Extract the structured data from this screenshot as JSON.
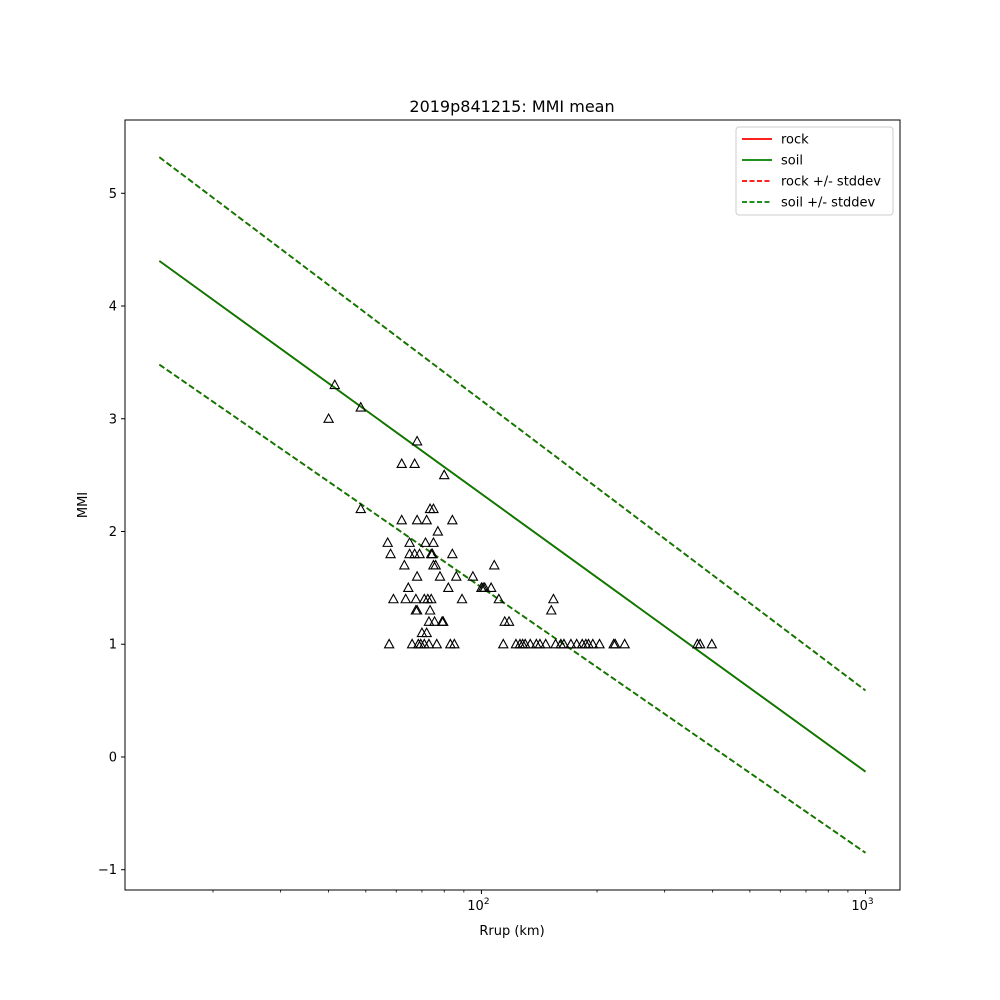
{
  "chart_data": {
    "type": "line",
    "title": "2019p841215: MMI mean",
    "xlabel": "Rrup (km)",
    "ylabel": "MMI",
    "x_scale": "log",
    "xlim": [
      11.8,
      1230
    ],
    "ylim": [
      -1.18,
      5.65
    ],
    "grid": false,
    "legend_position": "top-right",
    "x_major_ticks": [
      {
        "value": 100,
        "base": "10",
        "exp": "2"
      },
      {
        "value": 1000,
        "base": "10",
        "exp": "3"
      }
    ],
    "x_minor_ticks": [
      20,
      30,
      40,
      50,
      60,
      70,
      80,
      90,
      200,
      300,
      400,
      500,
      600,
      700,
      800,
      900
    ],
    "y_ticks": [
      {
        "value": -1,
        "label": "−1"
      },
      {
        "value": 0,
        "label": "0"
      },
      {
        "value": 1,
        "label": "1"
      },
      {
        "value": 2,
        "label": "2"
      },
      {
        "value": 3,
        "label": "3"
      },
      {
        "value": 4,
        "label": "4"
      },
      {
        "value": 5,
        "label": "5"
      }
    ],
    "lines": [
      {
        "name": "rock",
        "color": "#ff0000",
        "dash": false,
        "x": [
          14.5,
          1000
        ],
        "y": [
          4.4,
          -0.13
        ]
      },
      {
        "name": "soil",
        "color": "#008000",
        "dash": false,
        "x": [
          14.5,
          1000
        ],
        "y": [
          4.4,
          -0.13
        ]
      },
      {
        "name": "rock +/- stddev",
        "color": "#ff0000",
        "dash": true,
        "x": [
          14.5,
          1000
        ],
        "y": [
          5.32,
          0.59
        ]
      },
      {
        "name": "rock +/- stddev",
        "color": "#ff0000",
        "dash": true,
        "x": [
          14.5,
          1000
        ],
        "y": [
          3.48,
          -0.85
        ]
      },
      {
        "name": "soil +/- stddev",
        "color": "#008000",
        "dash": true,
        "x": [
          14.5,
          1000
        ],
        "y": [
          5.32,
          0.59
        ]
      },
      {
        "name": "soil +/- stddev",
        "color": "#008000",
        "dash": true,
        "x": [
          14.5,
          1000
        ],
        "y": [
          3.48,
          -0.85
        ]
      }
    ],
    "legend": [
      {
        "label": "rock",
        "color": "#ff0000",
        "dash": false
      },
      {
        "label": "soil",
        "color": "#008000",
        "dash": false
      },
      {
        "label": "rock +/- stddev",
        "color": "#ff0000",
        "dash": true
      },
      {
        "label": "soil +/- stddev",
        "color": "#008000",
        "dash": true
      }
    ],
    "observations": {
      "marker": "triangle",
      "color": "#000000",
      "points": [
        [
          40.0,
          3.0
        ],
        [
          41.5,
          3.3
        ],
        [
          48.5,
          3.1
        ],
        [
          48.5,
          2.2
        ],
        [
          57.0,
          1.9
        ],
        [
          57.5,
          1.0
        ],
        [
          58.0,
          1.8
        ],
        [
          59.0,
          1.4
        ],
        [
          62.0,
          2.6
        ],
        [
          62.0,
          2.1
        ],
        [
          63.0,
          1.7
        ],
        [
          63.5,
          1.4
        ],
        [
          64.5,
          1.5
        ],
        [
          65.0,
          1.9
        ],
        [
          65.0,
          1.8
        ],
        [
          66.0,
          1.0
        ],
        [
          67.0,
          2.6
        ],
        [
          67.0,
          1.8
        ],
        [
          67.5,
          1.4
        ],
        [
          67.5,
          1.3
        ],
        [
          68.0,
          2.8
        ],
        [
          68.0,
          2.1
        ],
        [
          68.0,
          1.6
        ],
        [
          68.0,
          1.3
        ],
        [
          68.5,
          1.0
        ],
        [
          69.0,
          1.8
        ],
        [
          69.5,
          1.0
        ],
        [
          70.0,
          1.1
        ],
        [
          71.0,
          1.4
        ],
        [
          71.0,
          1.0
        ],
        [
          71.5,
          1.9
        ],
        [
          72.0,
          2.1
        ],
        [
          72.0,
          1.1
        ],
        [
          72.5,
          1.4
        ],
        [
          73.0,
          1.0
        ],
        [
          73.0,
          1.2
        ],
        [
          73.5,
          1.3
        ],
        [
          73.5,
          2.2
        ],
        [
          74.0,
          1.8
        ],
        [
          74.0,
          1.4
        ],
        [
          74.5,
          1.8
        ],
        [
          75.0,
          2.2
        ],
        [
          75.0,
          1.9
        ],
        [
          75.0,
          1.7
        ],
        [
          75.5,
          1.2
        ],
        [
          76.0,
          1.7
        ],
        [
          76.5,
          1.0
        ],
        [
          77.0,
          2.0
        ],
        [
          78.0,
          1.6
        ],
        [
          79.0,
          1.2
        ],
        [
          79.5,
          1.2
        ],
        [
          80.0,
          2.5
        ],
        [
          82.0,
          1.5
        ],
        [
          83.0,
          1.0
        ],
        [
          84.0,
          2.1
        ],
        [
          84.0,
          1.8
        ],
        [
          85.0,
          1.0
        ],
        [
          86.0,
          1.6
        ],
        [
          89.0,
          1.4
        ],
        [
          95.0,
          1.6
        ],
        [
          100.0,
          1.5
        ],
        [
          101.0,
          1.5
        ],
        [
          102.0,
          1.5
        ],
        [
          106.0,
          1.5
        ],
        [
          108.0,
          1.7
        ],
        [
          111.0,
          1.4
        ],
        [
          114.0,
          1.0
        ],
        [
          115.0,
          1.2
        ],
        [
          118.0,
          1.2
        ],
        [
          123.0,
          1.0
        ],
        [
          126.0,
          1.0
        ],
        [
          128.0,
          1.0
        ],
        [
          130.0,
          1.0
        ],
        [
          134.0,
          1.0
        ],
        [
          139.0,
          1.0
        ],
        [
          142.0,
          1.0
        ],
        [
          147.0,
          1.0
        ],
        [
          152.0,
          1.3
        ],
        [
          154.0,
          1.4
        ],
        [
          156.0,
          1.0
        ],
        [
          161.0,
          1.0
        ],
        [
          164.0,
          1.0
        ],
        [
          171.0,
          1.0
        ],
        [
          177.0,
          1.0
        ],
        [
          183.0,
          1.0
        ],
        [
          187.0,
          1.0
        ],
        [
          190.0,
          1.0
        ],
        [
          195.0,
          1.0
        ],
        [
          203.0,
          1.0
        ],
        [
          221.0,
          1.0
        ],
        [
          223.0,
          1.0
        ],
        [
          236.0,
          1.0
        ],
        [
          365.0,
          1.0
        ],
        [
          371.0,
          1.0
        ],
        [
          398.0,
          1.0
        ]
      ]
    }
  }
}
